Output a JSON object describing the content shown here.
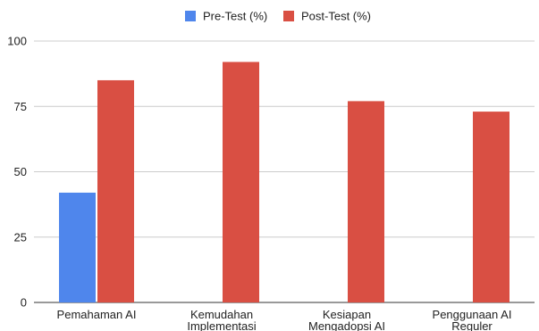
{
  "chart_data": {
    "type": "bar",
    "title": "",
    "xlabel": "",
    "ylabel": "",
    "categories": [
      [
        "Pemahaman AI"
      ],
      [
        "Kemudahan",
        "Implementasi"
      ],
      [
        "Kesiapan",
        "Mengadopsi AI"
      ],
      [
        "Penggunaan AI",
        "Reguler"
      ]
    ],
    "series": [
      {
        "name": "Pre-Test (%)",
        "color": "#4f86ec",
        "values": [
          42,
          null,
          null,
          null
        ]
      },
      {
        "name": "Post-Test (%)",
        "color": "#d94f43",
        "values": [
          85,
          92,
          77,
          73
        ]
      }
    ],
    "ylim": [
      0,
      100
    ],
    "yticks": [
      0,
      25,
      50,
      75,
      100
    ],
    "grid": true,
    "legend": "top-center"
  }
}
